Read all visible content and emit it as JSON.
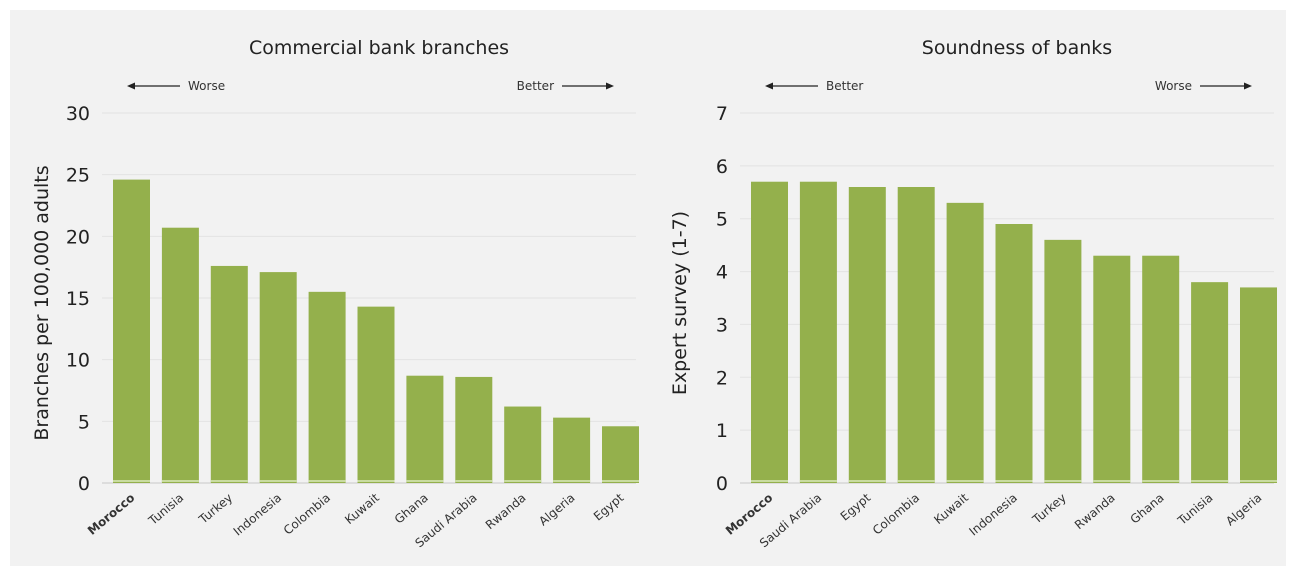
{
  "chart_data": [
    {
      "type": "bar",
      "title": "Commercial bank branches",
      "ylabel": "Branches per 100,000 adults",
      "xlabel": "",
      "left_arrow_label": "Worse",
      "right_arrow_label": "Better",
      "ylim": [
        0,
        30
      ],
      "yticks": [
        0,
        5,
        10,
        15,
        20,
        25,
        30
      ],
      "categories": [
        "Morocco",
        "Tunisia",
        "Turkey",
        "Indonesia",
        "Colombia",
        "Kuwait",
        "Ghana",
        "Saudi Arabia",
        "Rwanda",
        "Algeria",
        "Egypt"
      ],
      "highlight": "Morocco",
      "values": [
        24.6,
        20.7,
        17.6,
        17.1,
        15.5,
        14.3,
        8.7,
        8.6,
        6.2,
        5.3,
        4.6
      ],
      "bar_color": "#94b04c",
      "grid": true
    },
    {
      "type": "bar",
      "title": "Soundness of banks",
      "ylabel": "Expert survey (1-7)",
      "xlabel": "",
      "left_arrow_label": "Better",
      "right_arrow_label": "Worse",
      "ylim": [
        0,
        7
      ],
      "yticks": [
        0,
        1,
        2,
        3,
        4,
        5,
        6,
        7
      ],
      "categories": [
        "Morocco",
        "Saudi Arabia",
        "Egypt",
        "Colombia",
        "Kuwait",
        "Indonesia",
        "Turkey",
        "Rwanda",
        "Ghana",
        "Tunisia",
        "Algeria"
      ],
      "highlight": "Morocco",
      "values": [
        5.7,
        5.7,
        5.6,
        5.6,
        5.3,
        4.9,
        4.6,
        4.3,
        4.3,
        3.8,
        3.7
      ],
      "bar_color": "#94b04c",
      "grid": true
    }
  ]
}
